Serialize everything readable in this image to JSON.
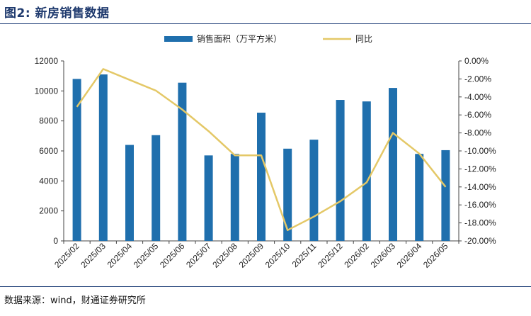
{
  "figure": {
    "title": "图2: 新房销售数据",
    "source": "数据来源：wind，财通证券研究所"
  },
  "colors": {
    "bar": "#1f6fad",
    "line": "#e4c867",
    "rule": "#27467c"
  },
  "chart_data": {
    "type": "bar",
    "categories": [
      "2025/02",
      "2025/03",
      "2025/04",
      "2025/05",
      "2025/06",
      "2025/07",
      "2025/08",
      "2025/09",
      "2025/10",
      "2025/11",
      "2025/12",
      "2026/02",
      "2026/03",
      "2026/04",
      "2026/05"
    ],
    "series": [
      {
        "name": "销售面积（万平方米）",
        "type": "bar",
        "axis": "left",
        "values": [
          10800,
          11100,
          6400,
          7050,
          10550,
          5700,
          5800,
          8550,
          6150,
          6750,
          9400,
          9300,
          10200,
          5800,
          6050
        ]
      },
      {
        "name": "同比",
        "type": "line",
        "axis": "right",
        "values": [
          -5.1,
          -0.9,
          -2.1,
          -3.3,
          -5.4,
          -7.8,
          -10.5,
          -10.5,
          -18.8,
          -17.3,
          -15.6,
          -13.5,
          -8.0,
          -10.3,
          -14.0
        ]
      }
    ],
    "yleft": {
      "ylim": [
        0,
        12000
      ],
      "ticks": [
        "0",
        "2000",
        "4000",
        "6000",
        "8000",
        "10000",
        "12000"
      ]
    },
    "yright": {
      "ylim": [
        -20,
        0
      ],
      "ticks": [
        "0.00%",
        "-2.00%",
        "-4.00%",
        "-6.00%",
        "-8.00%",
        "-10.00%",
        "-12.00%",
        "-14.00%",
        "-16.00%",
        "-18.00%",
        "-20.00%"
      ]
    },
    "legend": "top-center",
    "grid": false
  }
}
